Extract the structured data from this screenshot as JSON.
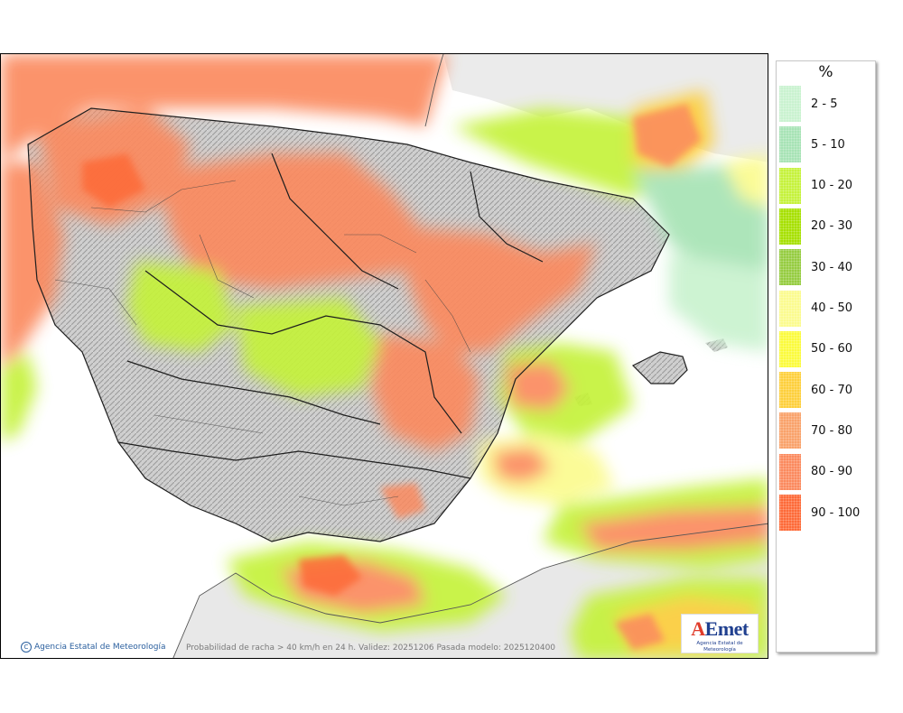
{
  "map": {
    "caption": "Probabilidad de racha > 40 km/h en 24 h. Validez: 20251206 Pasada modelo: 2025120400",
    "credit": "Agencia Estatal de Meteorología",
    "copyright_symbol": "C",
    "logo": {
      "mark_a": "A",
      "mark_rest": "Emet",
      "subtitle": "Agencia Estatal de Meteorología"
    }
  },
  "legend": {
    "title": "%",
    "items": [
      {
        "label": "2 - 5",
        "color": "#c9f2cf"
      },
      {
        "label": "5 - 10",
        "color": "#a7e3b5"
      },
      {
        "label": "10 - 20",
        "color": "#c5f23b"
      },
      {
        "label": "20 - 30",
        "color": "#a6e000"
      },
      {
        "label": "30 - 40",
        "color": "#95cc40"
      },
      {
        "label": "40 - 50",
        "color": "#fbfb8f"
      },
      {
        "label": "50 - 60",
        "color": "#fbfb3c"
      },
      {
        "label": "60 - 70",
        "color": "#fdcf3c"
      },
      {
        "label": "70 - 80",
        "color": "#f9a26a"
      },
      {
        "label": "80 - 90",
        "color": "#fb8a5e"
      },
      {
        "label": "90 - 100",
        "color": "#fd6a38"
      }
    ]
  }
}
